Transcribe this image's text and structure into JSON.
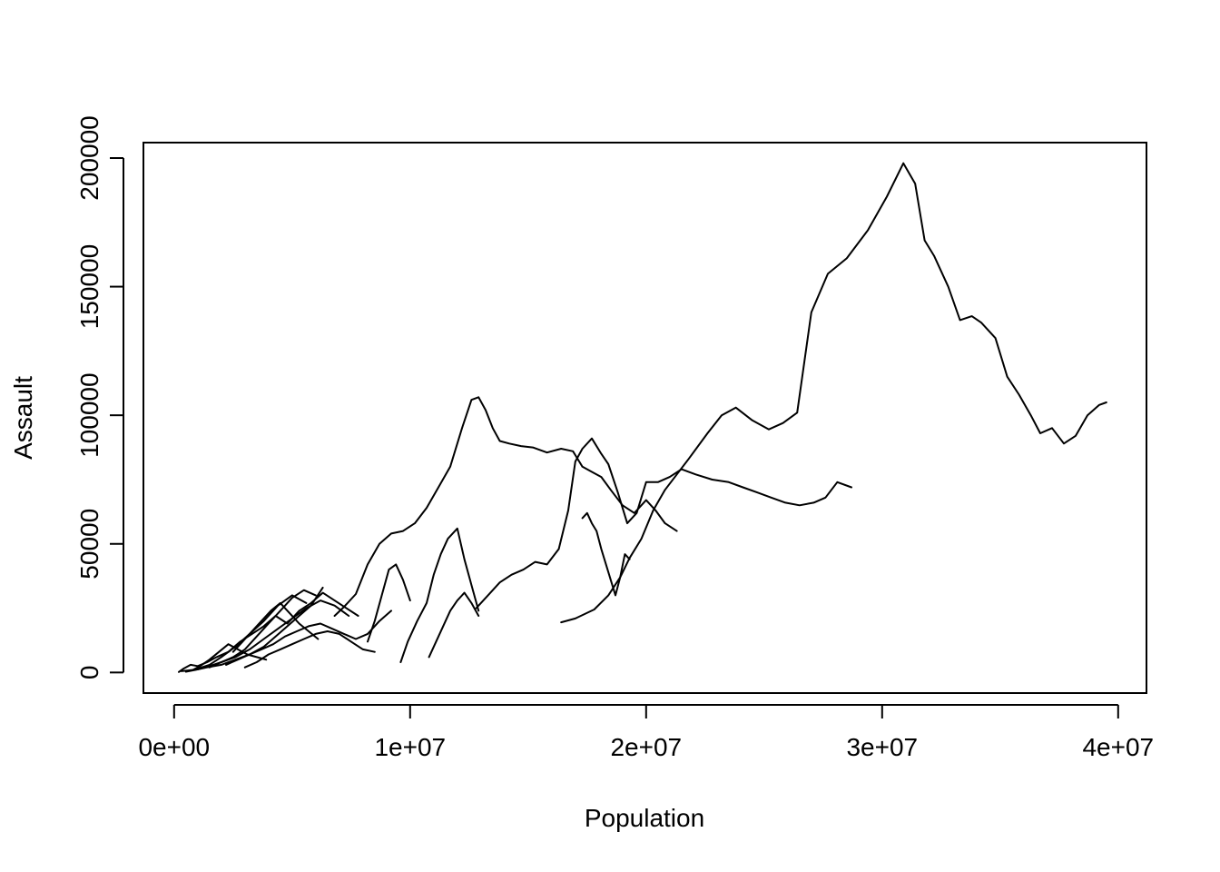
{
  "chart_data": {
    "type": "line",
    "title": "",
    "xlabel": "Population",
    "ylabel": "Assault",
    "xlim": [
      -1300000,
      41200000
    ],
    "ylim": [
      -8000,
      206000
    ],
    "x_ticks": [
      0,
      10000000,
      20000000,
      30000000,
      40000000
    ],
    "x_tick_labels": [
      "0e+00",
      "1e+07",
      "2e+07",
      "3e+07",
      "4e+07"
    ],
    "y_ticks": [
      0,
      50000,
      100000,
      150000,
      200000
    ],
    "y_tick_labels": [
      "0",
      "50000",
      "100000",
      "150000",
      "200000"
    ],
    "line_color": "#000000",
    "series": [
      {
        "x": [
          16400000,
          17000000,
          17800000,
          18400000,
          18900000,
          19300000,
          19800000,
          20300000,
          20800000,
          21300000,
          21800000,
          22600000,
          23200000,
          23800000,
          24500000,
          25200000,
          25800000,
          26400000,
          27000000,
          27700000,
          28500000,
          29400000,
          30200000,
          30900000,
          31400000,
          31800000,
          32200000,
          32800000,
          33300000,
          33800000,
          34200000,
          34800000,
          35300000,
          35800000,
          36300000,
          36700000,
          37200000,
          37700000,
          38200000,
          38700000,
          39200000,
          39500000
        ],
        "y": [
          19500,
          21000,
          24500,
          30000,
          37000,
          44500,
          52000,
          63000,
          71000,
          77000,
          83000,
          93000,
          100000,
          103000,
          98000,
          94500,
          97000,
          101000,
          140000,
          155000,
          161000,
          172000,
          185000,
          198000,
          190000,
          168000,
          162000,
          150000,
          137000,
          138500,
          136000,
          130000,
          115000,
          108000,
          100000,
          93000,
          95000,
          89000,
          92000,
          100000,
          104000,
          105000
        ]
      },
      {
        "x": [
          6800000,
          7200000,
          7700000,
          8200000,
          8700000,
          9200000,
          9700000,
          10200000,
          10700000,
          11200000,
          11700000,
          12200000,
          12600000,
          12900000,
          13200000,
          13500000,
          13800000,
          14200000,
          14700000,
          15200000,
          15800000,
          16400000,
          16900000,
          17300000,
          17700000,
          18100000,
          18500000,
          19000000,
          19500000,
          20000000,
          20400000,
          20800000,
          21300000
        ],
        "y": [
          22000,
          25500,
          30500,
          42000,
          50000,
          54000,
          55000,
          58000,
          64000,
          72000,
          80000,
          95000,
          106000,
          107000,
          102000,
          95000,
          90000,
          89000,
          88000,
          87500,
          85500,
          87000,
          86000,
          80000,
          78000,
          76000,
          71000,
          65000,
          62000,
          67000,
          63000,
          58000,
          55000
        ]
      },
      {
        "x": [
          12800000,
          13300000,
          13800000,
          14300000,
          14800000,
          15300000,
          15800000,
          16300000,
          16700000,
          17000000,
          17300000,
          17700000,
          18100000,
          18400000,
          18800000,
          19200000,
          19600000,
          20000000,
          20500000,
          21000000,
          21500000,
          22100000,
          22800000,
          23500000,
          24100000,
          24700000,
          25300000,
          25900000,
          26500000,
          27100000,
          27600000,
          28100000,
          28700000
        ],
        "y": [
          25000,
          30000,
          35000,
          38000,
          40000,
          43000,
          42000,
          48000,
          63000,
          82000,
          87000,
          91000,
          85000,
          81000,
          70000,
          58000,
          62000,
          74000,
          74000,
          76000,
          79000,
          77000,
          75000,
          74000,
          72000,
          70000,
          68000,
          66000,
          65000,
          66000,
          68000,
          74000,
          72000
        ]
      },
      {
        "x": [
          17300000,
          17500000,
          17700000,
          17900000,
          18100000,
          18300000,
          18500000,
          18700000,
          18900000,
          19100000,
          19300000
        ],
        "y": [
          60000,
          62000,
          58000,
          55000,
          48000,
          42000,
          36000,
          30000,
          37000,
          46000,
          44000
        ]
      },
      {
        "x": [
          9600000,
          9900000,
          10300000,
          10700000,
          11000000,
          11300000,
          11600000,
          12000000,
          12300000,
          12600000,
          12900000
        ],
        "y": [
          4000,
          12000,
          20000,
          27000,
          38000,
          46000,
          52000,
          56000,
          44000,
          34000,
          24000
        ]
      },
      {
        "x": [
          10800000,
          11100000,
          11400000,
          11700000,
          12000000,
          12300000,
          12600000,
          12900000
        ],
        "y": [
          6000,
          12000,
          18000,
          24000,
          28000,
          31000,
          27000,
          22000
        ]
      },
      {
        "x": [
          8200000,
          8500000,
          8800000,
          9100000,
          9400000,
          9700000,
          10000000
        ],
        "y": [
          12000,
          20000,
          30000,
          40000,
          42000,
          36000,
          28000
        ]
      },
      {
        "x": [
          200000,
          400000,
          700000,
          1000000,
          1400000,
          1800000,
          2300000,
          2800000,
          3300000,
          3800000,
          4300000,
          4800000,
          5300000,
          5800000,
          6300000,
          6800000,
          7300000,
          7800000
        ],
        "y": [
          200,
          1500,
          3000,
          2500,
          4000,
          6000,
          8000,
          12000,
          15000,
          18000,
          22000,
          19000,
          24000,
          27000,
          31000,
          28000,
          25000,
          22000
        ]
      },
      {
        "x": [
          300000,
          600000,
          1000000,
          1500000,
          2000000,
          2600000,
          3200000,
          3800000,
          4400000,
          5000000,
          5600000,
          6200000,
          6800000,
          7400000
        ],
        "y": [
          500,
          800,
          1200,
          2500,
          4000,
          6000,
          9000,
          13000,
          17000,
          21000,
          25000,
          28000,
          26000,
          22000
        ]
      },
      {
        "x": [
          500000,
          900000,
          1400000,
          2000000,
          2600000,
          3200000,
          3800000,
          4300000,
          4800000,
          5300000,
          5800000,
          6300000
        ],
        "y": [
          300,
          1000,
          2000,
          3000,
          5000,
          7000,
          10000,
          14000,
          18000,
          22000,
          26000,
          33000
        ]
      },
      {
        "x": [
          1500000,
          2000000,
          2500000,
          3000000,
          3500000,
          4000000,
          4500000,
          5000000,
          5500000,
          6000000
        ],
        "y": [
          2000,
          4000,
          6000,
          9000,
          14000,
          19000,
          24000,
          29000,
          32000,
          30000
        ]
      },
      {
        "x": [
          2200000,
          2700000,
          3200000,
          3700000,
          4200000,
          4700000,
          5200000,
          5700000,
          6200000,
          6700000,
          7200000,
          7700000,
          8200000,
          8700000,
          9200000
        ],
        "y": [
          3000,
          5000,
          7000,
          9000,
          11000,
          14000,
          16000,
          18000,
          19000,
          17000,
          15000,
          13000,
          15000,
          20000,
          24000
        ]
      },
      {
        "x": [
          1000000,
          1500000,
          2000000,
          2600000,
          3200000,
          3800000,
          4400000,
          5000000,
          5600000
        ],
        "y": [
          1500,
          3000,
          6000,
          10000,
          15000,
          20000,
          26000,
          30000,
          27000
        ]
      },
      {
        "x": [
          3000000,
          3500000,
          4000000,
          4500000,
          5000000,
          5500000,
          6000000,
          6500000,
          7000000,
          7500000,
          8000000,
          8500000
        ],
        "y": [
          2000,
          4000,
          7000,
          9000,
          11000,
          13000,
          15000,
          16000,
          15000,
          12000,
          9000,
          8000
        ]
      },
      {
        "x": [
          2500000,
          2900000,
          3300000,
          3700000,
          4100000,
          4500000,
          4900000,
          5300000,
          5700000,
          6100000
        ],
        "y": [
          8000,
          12000,
          16000,
          20000,
          24000,
          27000,
          23000,
          19000,
          16000,
          13000
        ]
      },
      {
        "x": [
          800000,
          1100000,
          1500000,
          1900000,
          2300000,
          2700000,
          3100000,
          3500000,
          3900000
        ],
        "y": [
          1000,
          2500,
          5000,
          8000,
          11000,
          9000,
          7000,
          6000,
          5000
        ]
      }
    ]
  }
}
